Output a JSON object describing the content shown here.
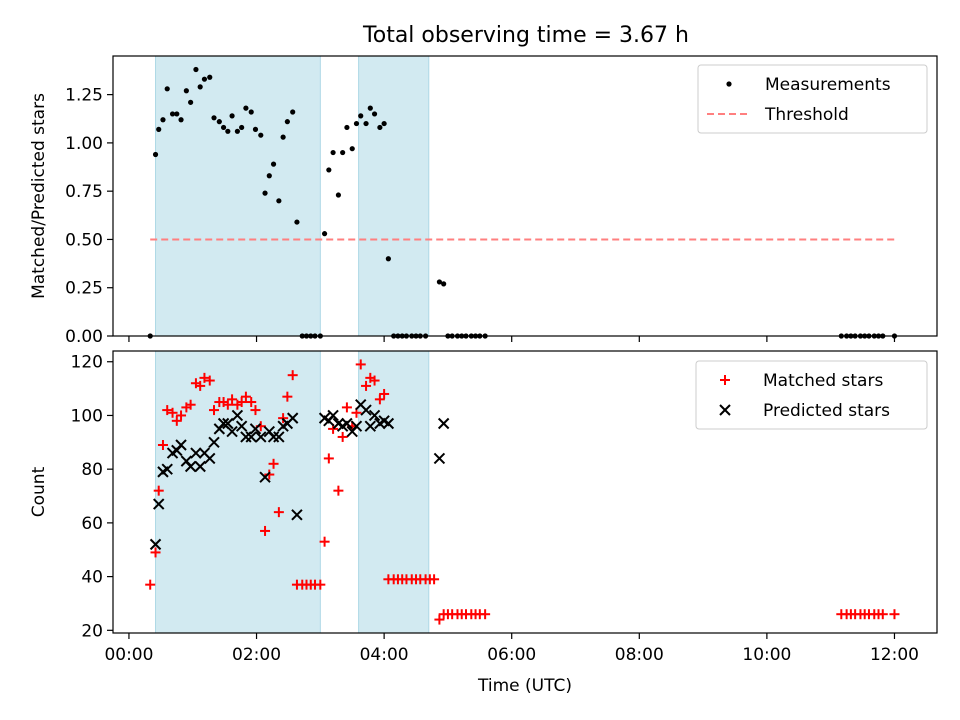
{
  "figure_title": "Total observing time = 3.67 h",
  "shaded_intervals": [
    [
      "00:25",
      "03:00"
    ],
    [
      "03:36",
      "04:42"
    ]
  ],
  "colors": {
    "shade": "#add8e6",
    "measurements": "#000000",
    "threshold": "#ff7f7f",
    "matched": "#ff0000",
    "predicted": "#000000"
  },
  "chart_data": [
    {
      "type": "scatter",
      "title": "Total observing time = 3.67 h",
      "xlabel": "",
      "ylabel": "Matched/Predicted stars",
      "xlim": [
        "23:45",
        "12:40"
      ],
      "ylim": [
        0,
        1.45
      ],
      "yticks": [
        0.0,
        0.25,
        0.5,
        0.75,
        1.0,
        1.25
      ],
      "ytick_labels": [
        "0.00",
        "0.25",
        "0.50",
        "0.75",
        "1.00",
        "1.25"
      ],
      "legend_position": "top-right",
      "series": [
        {
          "name": "Measurements",
          "marker": "dot",
          "points": [
            [
              "00:20",
              0.0
            ],
            [
              "00:25",
              0.94
            ],
            [
              "00:28",
              1.07
            ],
            [
              "00:32",
              1.12
            ],
            [
              "00:36",
              1.28
            ],
            [
              "00:41",
              1.15
            ],
            [
              "00:45",
              1.15
            ],
            [
              "00:49",
              1.12
            ],
            [
              "00:54",
              1.27
            ],
            [
              "00:58",
              1.21
            ],
            [
              "01:03",
              1.38
            ],
            [
              "01:07",
              1.29
            ],
            [
              "01:11",
              1.33
            ],
            [
              "01:16",
              1.34
            ],
            [
              "01:20",
              1.13
            ],
            [
              "01:25",
              1.11
            ],
            [
              "01:29",
              1.08
            ],
            [
              "01:33",
              1.06
            ],
            [
              "01:37",
              1.14
            ],
            [
              "01:42",
              1.06
            ],
            [
              "01:46",
              1.08
            ],
            [
              "01:50",
              1.18
            ],
            [
              "01:55",
              1.16
            ],
            [
              "01:59",
              1.07
            ],
            [
              "02:04",
              1.04
            ],
            [
              "02:08",
              0.74
            ],
            [
              "02:12",
              0.83
            ],
            [
              "02:16",
              0.89
            ],
            [
              "02:21",
              0.7
            ],
            [
              "02:25",
              1.03
            ],
            [
              "02:29",
              1.11
            ],
            [
              "02:34",
              1.16
            ],
            [
              "02:38",
              0.59
            ],
            [
              "02:43",
              0.0
            ],
            [
              "02:47",
              0.0
            ],
            [
              "02:51",
              0.0
            ],
            [
              "02:55",
              0.0
            ],
            [
              "03:00",
              0.0
            ],
            [
              "03:04",
              0.53
            ],
            [
              "03:08",
              0.86
            ],
            [
              "03:12",
              0.95
            ],
            [
              "03:17",
              0.73
            ],
            [
              "03:21",
              0.95
            ],
            [
              "03:25",
              1.08
            ],
            [
              "03:30",
              0.97
            ],
            [
              "03:34",
              1.1
            ],
            [
              "03:38",
              1.14
            ],
            [
              "03:43",
              1.1
            ],
            [
              "03:47",
              1.18
            ],
            [
              "03:51",
              1.15
            ],
            [
              "03:56",
              1.08
            ],
            [
              "04:00",
              1.1
            ],
            [
              "04:04",
              0.4
            ],
            [
              "04:09",
              0.0
            ],
            [
              "04:13",
              0.0
            ],
            [
              "04:17",
              0.0
            ],
            [
              "04:21",
              0.0
            ],
            [
              "04:26",
              0.0
            ],
            [
              "04:30",
              0.0
            ],
            [
              "04:34",
              0.0
            ],
            [
              "04:39",
              0.0
            ],
            [
              "04:52",
              0.28
            ],
            [
              "04:56",
              0.27
            ],
            [
              "05:00",
              0.0
            ],
            [
              "05:04",
              0.0
            ],
            [
              "05:09",
              0.0
            ],
            [
              "05:13",
              0.0
            ],
            [
              "05:17",
              0.0
            ],
            [
              "05:22",
              0.0
            ],
            [
              "05:26",
              0.0
            ],
            [
              "05:30",
              0.0
            ],
            [
              "05:35",
              0.0
            ],
            [
              "11:10",
              0.0
            ],
            [
              "11:15",
              0.0
            ],
            [
              "11:19",
              0.0
            ],
            [
              "11:23",
              0.0
            ],
            [
              "11:28",
              0.0
            ],
            [
              "11:32",
              0.0
            ],
            [
              "11:36",
              0.0
            ],
            [
              "11:41",
              0.0
            ],
            [
              "11:45",
              0.0
            ],
            [
              "11:49",
              0.0
            ],
            [
              "12:00",
              0.0
            ]
          ]
        },
        {
          "name": "Threshold",
          "marker": "dashed-line",
          "points": [
            [
              "00:20",
              0.5
            ],
            [
              "12:00",
              0.5
            ]
          ]
        }
      ]
    },
    {
      "type": "scatter",
      "title": "",
      "xlabel": "Time (UTC)",
      "ylabel": "Count",
      "xlim": [
        "23:45",
        "12:40"
      ],
      "ylim": [
        19,
        124
      ],
      "yticks": [
        20,
        40,
        60,
        80,
        100,
        120
      ],
      "ytick_labels": [
        "20",
        "40",
        "60",
        "80",
        "100",
        "120"
      ],
      "xticks": [
        "00:00",
        "02:00",
        "04:00",
        "06:00",
        "08:00",
        "10:00",
        "12:00"
      ],
      "xtick_labels": [
        "00:00",
        "02:00",
        "04:00",
        "06:00",
        "08:00",
        "10:00",
        "12:00"
      ],
      "legend_position": "top-right",
      "series": [
        {
          "name": "Matched stars",
          "marker": "plus",
          "points": [
            [
              "00:20",
              37
            ],
            [
              "00:25",
              49
            ],
            [
              "00:28",
              72
            ],
            [
              "00:32",
              89
            ],
            [
              "00:36",
              102
            ],
            [
              "00:41",
              101
            ],
            [
              "00:45",
              98
            ],
            [
              "00:49",
              100
            ],
            [
              "00:54",
              103
            ],
            [
              "00:58",
              104
            ],
            [
              "01:03",
              112
            ],
            [
              "01:07",
              111
            ],
            [
              "01:11",
              114
            ],
            [
              "01:16",
              113
            ],
            [
              "01:20",
              102
            ],
            [
              "01:25",
              105
            ],
            [
              "01:29",
              105
            ],
            [
              "01:33",
              104
            ],
            [
              "01:37",
              106
            ],
            [
              "01:42",
              104
            ],
            [
              "01:46",
              105
            ],
            [
              "01:50",
              107
            ],
            [
              "01:55",
              105
            ],
            [
              "01:59",
              102
            ],
            [
              "02:04",
              96
            ],
            [
              "02:08",
              57
            ],
            [
              "02:12",
              78
            ],
            [
              "02:16",
              82
            ],
            [
              "02:21",
              64
            ],
            [
              "02:25",
              99
            ],
            [
              "02:29",
              107
            ],
            [
              "02:34",
              115
            ],
            [
              "02:38",
              37
            ],
            [
              "02:43",
              37
            ],
            [
              "02:47",
              37
            ],
            [
              "02:51",
              37
            ],
            [
              "02:55",
              37
            ],
            [
              "03:00",
              37
            ],
            [
              "03:04",
              53
            ],
            [
              "03:08",
              84
            ],
            [
              "03:12",
              95
            ],
            [
              "03:17",
              72
            ],
            [
              "03:21",
              92
            ],
            [
              "03:25",
              103
            ],
            [
              "03:30",
              96
            ],
            [
              "03:34",
              101
            ],
            [
              "03:38",
              119
            ],
            [
              "03:43",
              111
            ],
            [
              "03:47",
              114
            ],
            [
              "03:51",
              113
            ],
            [
              "03:56",
              106
            ],
            [
              "04:00",
              108
            ],
            [
              "04:04",
              39
            ],
            [
              "04:09",
              39
            ],
            [
              "04:13",
              39
            ],
            [
              "04:17",
              39
            ],
            [
              "04:21",
              39
            ],
            [
              "04:26",
              39
            ],
            [
              "04:30",
              39
            ],
            [
              "04:34",
              39
            ],
            [
              "04:39",
              39
            ],
            [
              "04:43",
              39
            ],
            [
              "04:47",
              39
            ],
            [
              "04:52",
              24
            ],
            [
              "04:56",
              26
            ],
            [
              "05:00",
              26
            ],
            [
              "05:04",
              26
            ],
            [
              "05:09",
              26
            ],
            [
              "05:13",
              26
            ],
            [
              "05:17",
              26
            ],
            [
              "05:22",
              26
            ],
            [
              "05:26",
              26
            ],
            [
              "05:30",
              26
            ],
            [
              "05:35",
              26
            ],
            [
              "11:10",
              26
            ],
            [
              "11:15",
              26
            ],
            [
              "11:19",
              26
            ],
            [
              "11:23",
              26
            ],
            [
              "11:28",
              26
            ],
            [
              "11:32",
              26
            ],
            [
              "11:36",
              26
            ],
            [
              "11:41",
              26
            ],
            [
              "11:45",
              26
            ],
            [
              "11:49",
              26
            ],
            [
              "12:00",
              26
            ]
          ]
        },
        {
          "name": "Predicted stars",
          "marker": "x",
          "points": [
            [
              "00:25",
              52
            ],
            [
              "00:28",
              67
            ],
            [
              "00:32",
              79
            ],
            [
              "00:36",
              80
            ],
            [
              "00:41",
              86
            ],
            [
              "00:45",
              87
            ],
            [
              "00:49",
              89
            ],
            [
              "00:54",
              83
            ],
            [
              "00:58",
              81
            ],
            [
              "01:03",
              86
            ],
            [
              "01:07",
              81
            ],
            [
              "01:11",
              86
            ],
            [
              "01:16",
              84
            ],
            [
              "01:20",
              90
            ],
            [
              "01:25",
              95
            ],
            [
              "01:29",
              97
            ],
            [
              "01:33",
              97
            ],
            [
              "01:37",
              94
            ],
            [
              "01:42",
              100
            ],
            [
              "01:46",
              96
            ],
            [
              "01:50",
              92
            ],
            [
              "01:55",
              92
            ],
            [
              "01:59",
              95
            ],
            [
              "02:04",
              92
            ],
            [
              "02:08",
              77
            ],
            [
              "02:12",
              94
            ],
            [
              "02:16",
              92
            ],
            [
              "02:21",
              92
            ],
            [
              "02:25",
              96
            ],
            [
              "02:29",
              97
            ],
            [
              "02:34",
              99
            ],
            [
              "02:38",
              63
            ],
            [
              "03:04",
              99
            ],
            [
              "03:08",
              98
            ],
            [
              "03:12",
              100
            ],
            [
              "03:17",
              97
            ],
            [
              "03:21",
              96
            ],
            [
              "03:25",
              97
            ],
            [
              "03:30",
              94
            ],
            [
              "03:34",
              96
            ],
            [
              "03:38",
              104
            ],
            [
              "03:43",
              102
            ],
            [
              "03:47",
              96
            ],
            [
              "03:51",
              100
            ],
            [
              "03:56",
              97
            ],
            [
              "04:00",
              98
            ],
            [
              "04:04",
              97
            ],
            [
              "04:52",
              84
            ],
            [
              "04:56",
              97
            ]
          ]
        }
      ]
    }
  ]
}
